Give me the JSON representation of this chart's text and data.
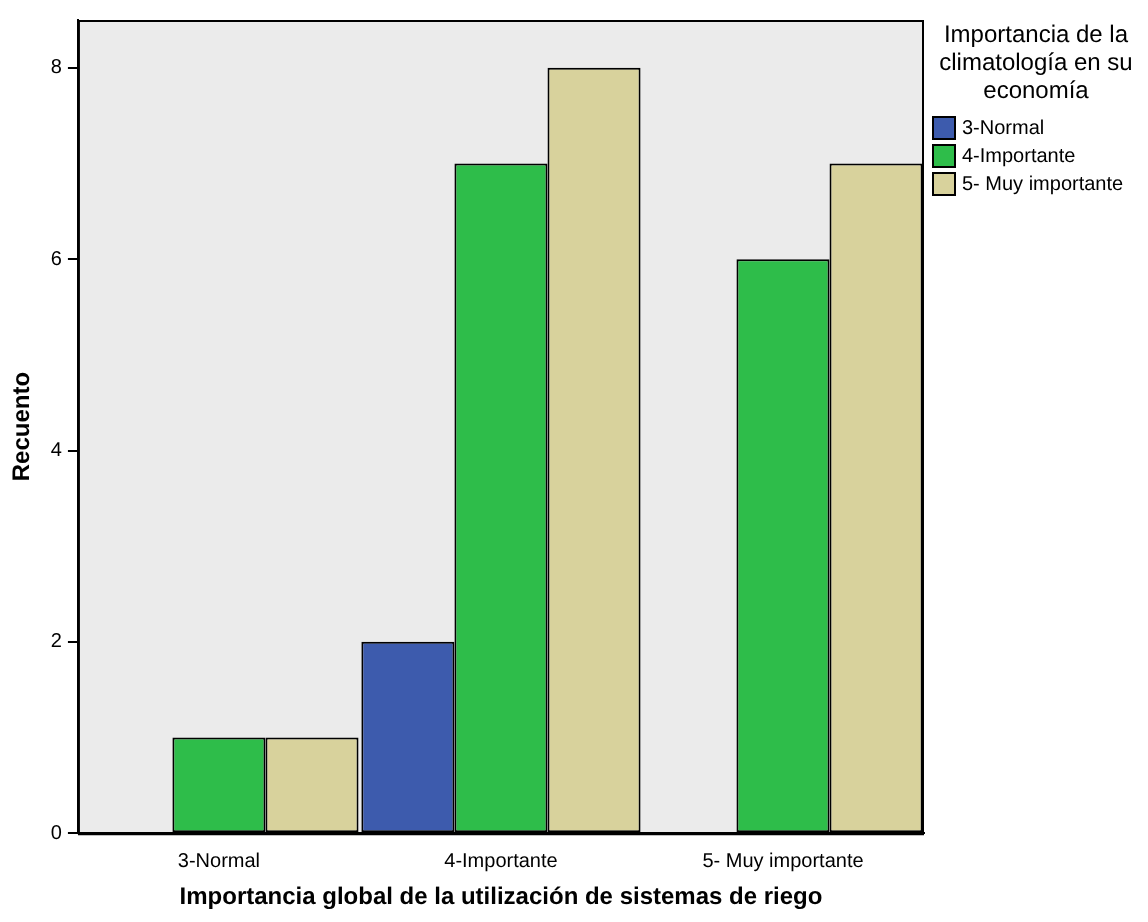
{
  "chart_data": {
    "type": "bar",
    "xlabel": "Importancia global de la utilización de sistemas de riego",
    "ylabel": "Recuento",
    "legend_title": "Importancia de la climatología en su economía",
    "categories": [
      "3-Normal",
      "4-Importante",
      "5- Muy importante"
    ],
    "series": [
      {
        "name": "3-Normal",
        "color": "#3d5bad",
        "values": [
          0,
          2,
          0
        ]
      },
      {
        "name": "4-Importante",
        "color": "#2ebd4a",
        "values": [
          1,
          7,
          6
        ]
      },
      {
        "name": "5- Muy importante",
        "color": "#d8d29c",
        "values": [
          1,
          8,
          7
        ]
      }
    ],
    "ylim": [
      0,
      8.5
    ],
    "yticks": [
      0,
      2,
      4,
      6,
      8
    ],
    "grid": false,
    "legend": "right"
  }
}
